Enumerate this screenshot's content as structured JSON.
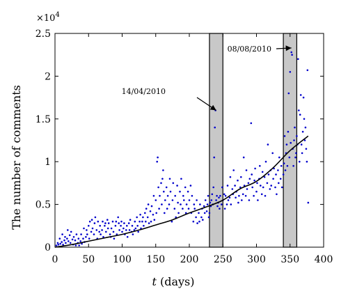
{
  "chart_data": {
    "type": "scatter",
    "xlabel_var": "t",
    "xlabel_unit": " (days)",
    "ylabel": "The number of comments",
    "y_multiplier": "×10",
    "y_multiplier_exp": "4",
    "xlim": [
      0,
      400
    ],
    "ylim": [
      0,
      2.5
    ],
    "y_scale_factor": 10000,
    "xticks": [
      0,
      50,
      100,
      150,
      200,
      250,
      300,
      350,
      400
    ],
    "yticks": [
      0,
      0.5,
      1,
      1.5,
      2,
      2.5
    ],
    "ytick_labels": [
      "0",
      "0.5",
      "1",
      "1.5",
      "2",
      "2.5"
    ],
    "grid": false,
    "colors": {
      "points": "#0000cc",
      "fit": "#000000",
      "band": "#c8c8c8"
    },
    "highlight_bands": [
      {
        "x": [
          230,
          250
        ]
      },
      {
        "x": [
          340,
          360
        ]
      }
    ],
    "annotations": [
      {
        "text": "14/04/2010",
        "target": [
          240,
          1.6
        ]
      },
      {
        "text": "08/08/2010",
        "target": [
          352,
          2.33
        ]
      }
    ],
    "fit": {
      "x": [
        0,
        25,
        50,
        75,
        100,
        125,
        150,
        175,
        200,
        225,
        250,
        275,
        300,
        325,
        350,
        377
      ],
      "y": [
        0,
        0.03,
        0.07,
        0.11,
        0.15,
        0.2,
        0.26,
        0.32,
        0.4,
        0.47,
        0.55,
        0.68,
        0.77,
        0.93,
        1.13,
        1.3
      ]
    },
    "series": [
      {
        "values": [
          [
            2,
            0.02
          ],
          [
            4,
            0.05
          ],
          [
            5,
            0.03
          ],
          [
            7,
            0.1
          ],
          [
            8,
            0.04
          ],
          [
            10,
            0.06
          ],
          [
            11,
            0.15
          ],
          [
            12,
            0.03
          ],
          [
            14,
            0.08
          ],
          [
            15,
            0.12
          ],
          [
            16,
            0.05
          ],
          [
            18,
            0.1
          ],
          [
            19,
            0.2
          ],
          [
            20,
            0.07
          ],
          [
            22,
            0.14
          ],
          [
            23,
            0.05
          ],
          [
            24,
            0.18
          ],
          [
            26,
            0.09
          ],
          [
            27,
            0.03
          ],
          [
            28,
            0.12
          ],
          [
            30,
            0.08
          ],
          [
            31,
            0.02
          ],
          [
            32,
            0.15
          ],
          [
            34,
            0.05
          ],
          [
            35,
            0.1
          ],
          [
            36,
            0.02
          ],
          [
            38,
            0.07
          ],
          [
            39,
            0.15
          ],
          [
            40,
            0.04
          ],
          [
            42,
            0.1
          ],
          [
            43,
            0.22
          ],
          [
            44,
            0.06
          ],
          [
            46,
            0.12
          ],
          [
            47,
            0.2
          ],
          [
            48,
            0.15
          ],
          [
            50,
            0.25
          ],
          [
            51,
            0.1
          ],
          [
            52,
            0.3
          ],
          [
            54,
            0.18
          ],
          [
            55,
            0.32
          ],
          [
            56,
            0.22
          ],
          [
            58,
            0.15
          ],
          [
            59,
            0.28
          ],
          [
            60,
            0.35
          ],
          [
            62,
            0.2
          ],
          [
            63,
            0.1
          ],
          [
            64,
            0.3
          ],
          [
            66,
            0.18
          ],
          [
            67,
            0.25
          ],
          [
            68,
            0.15
          ],
          [
            70,
            0.2
          ],
          [
            71,
            0.3
          ],
          [
            72,
            0.12
          ],
          [
            74,
            0.25
          ],
          [
            75,
            0.28
          ],
          [
            76,
            0.18
          ],
          [
            78,
            0.32
          ],
          [
            79,
            0.22
          ],
          [
            80,
            0.28
          ],
          [
            82,
            0.15
          ],
          [
            83,
            0.12
          ],
          [
            84,
            0.22
          ],
          [
            86,
            0.3
          ],
          [
            87,
            0.18
          ],
          [
            88,
            0.1
          ],
          [
            90,
            0.25
          ],
          [
            91,
            0.3
          ],
          [
            92,
            0.15
          ],
          [
            94,
            0.35
          ],
          [
            95,
            0.28
          ],
          [
            96,
            0.2
          ],
          [
            98,
            0.25
          ],
          [
            99,
            0.3
          ],
          [
            100,
            0.18
          ],
          [
            102,
            0.22
          ],
          [
            103,
            0.28
          ],
          [
            104,
            0.15
          ],
          [
            106,
            0.2
          ],
          [
            107,
            0.25
          ],
          [
            108,
            0.12
          ],
          [
            110,
            0.28
          ],
          [
            111,
            0.2
          ],
          [
            112,
            0.32
          ],
          [
            114,
            0.18
          ],
          [
            115,
            0.25
          ],
          [
            116,
            0.15
          ],
          [
            118,
            0.2
          ],
          [
            119,
            0.3
          ],
          [
            120,
            0.22
          ],
          [
            122,
            0.35
          ],
          [
            123,
            0.25
          ],
          [
            124,
            0.18
          ],
          [
            126,
            0.3
          ],
          [
            127,
            0.38
          ],
          [
            128,
            0.22
          ],
          [
            130,
            0.3
          ],
          [
            131,
            0.35
          ],
          [
            132,
            0.25
          ],
          [
            134,
            0.4
          ],
          [
            135,
            0.3
          ],
          [
            136,
            0.45
          ],
          [
            138,
            0.35
          ],
          [
            139,
            0.5
          ],
          [
            140,
            0.28
          ],
          [
            142,
            0.42
          ],
          [
            143,
            0.3
          ],
          [
            144,
            0.48
          ],
          [
            146,
            0.38
          ],
          [
            147,
            0.6
          ],
          [
            148,
            0.32
          ],
          [
            150,
            0.55
          ],
          [
            151,
            0.4
          ],
          [
            152,
            1.0
          ],
          [
            153,
            1.05
          ],
          [
            154,
            0.7
          ],
          [
            155,
            0.45
          ],
          [
            156,
            0.6
          ],
          [
            158,
            0.75
          ],
          [
            159,
            0.5
          ],
          [
            160,
            0.8
          ],
          [
            161,
            0.9
          ],
          [
            162,
            0.65
          ],
          [
            163,
            0.4
          ],
          [
            164,
            0.55
          ],
          [
            166,
            0.7
          ],
          [
            167,
            0.45
          ],
          [
            168,
            0.6
          ],
          [
            170,
            0.5
          ],
          [
            171,
            0.8
          ],
          [
            172,
            0.65
          ],
          [
            174,
            0.3
          ],
          [
            175,
            0.55
          ],
          [
            176,
            0.75
          ],
          [
            178,
            0.45
          ],
          [
            179,
            0.6
          ],
          [
            180,
            0.35
          ],
          [
            182,
            0.72
          ],
          [
            183,
            0.52
          ],
          [
            184,
            0.4
          ],
          [
            186,
            0.65
          ],
          [
            187,
            0.5
          ],
          [
            188,
            0.8
          ],
          [
            190,
            0.45
          ],
          [
            191,
            0.6
          ],
          [
            192,
            0.55
          ],
          [
            194,
            0.7
          ],
          [
            195,
            0.4
          ],
          [
            196,
            0.5
          ],
          [
            198,
            0.65
          ],
          [
            199,
            0.45
          ],
          [
            200,
            0.55
          ],
          [
            202,
            0.72
          ],
          [
            203,
            0.4
          ],
          [
            204,
            0.6
          ],
          [
            206,
            0.3
          ],
          [
            207,
            0.5
          ],
          [
            208,
            0.45
          ],
          [
            210,
            0.35
          ],
          [
            211,
            0.55
          ],
          [
            212,
            0.28
          ],
          [
            214,
            0.4
          ],
          [
            215,
            0.3
          ],
          [
            216,
            0.5
          ],
          [
            218,
            0.35
          ],
          [
            219,
            0.45
          ],
          [
            220,
            0.32
          ],
          [
            222,
            0.48
          ],
          [
            223,
            0.4
          ],
          [
            224,
            0.55
          ],
          [
            226,
            0.42
          ],
          [
            227,
            0.5
          ],
          [
            228,
            0.6
          ],
          [
            229,
            0.35
          ],
          [
            230,
            0.4
          ],
          [
            231,
            0.52
          ],
          [
            232,
            0.48
          ],
          [
            233,
            0.55
          ],
          [
            234,
            0.62
          ],
          [
            235,
            0.5
          ],
          [
            236,
            0.7
          ],
          [
            237,
            1.05
          ],
          [
            238,
            1.4
          ],
          [
            239,
            1.6
          ],
          [
            240,
            0.55
          ],
          [
            241,
            0.6
          ],
          [
            242,
            0.48
          ],
          [
            243,
            0.52
          ],
          [
            244,
            0.58
          ],
          [
            245,
            0.45
          ],
          [
            246,
            0.6
          ],
          [
            248,
            0.5
          ],
          [
            249,
            0.7
          ],
          [
            250,
            0.55
          ],
          [
            252,
            0.62
          ],
          [
            253,
            0.45
          ],
          [
            254,
            0.6
          ],
          [
            256,
            0.5
          ],
          [
            257,
            0.72
          ],
          [
            258,
            0.55
          ],
          [
            260,
            0.58
          ],
          [
            261,
            0.82
          ],
          [
            262,
            0.5
          ],
          [
            264,
            0.68
          ],
          [
            265,
            0.62
          ],
          [
            266,
            0.9
          ],
          [
            268,
            0.72
          ],
          [
            269,
            0.58
          ],
          [
            270,
            0.65
          ],
          [
            272,
            0.78
          ],
          [
            273,
            0.52
          ],
          [
            274,
            0.6
          ],
          [
            276,
            0.7
          ],
          [
            277,
            0.82
          ],
          [
            278,
            0.55
          ],
          [
            280,
            0.62
          ],
          [
            281,
            1.05
          ],
          [
            282,
            0.72
          ],
          [
            284,
            0.6
          ],
          [
            285,
            0.9
          ],
          [
            286,
            0.68
          ],
          [
            288,
            0.75
          ],
          [
            289,
            0.55
          ],
          [
            290,
            0.8
          ],
          [
            292,
            1.45
          ],
          [
            293,
            0.85
          ],
          [
            294,
            0.7
          ],
          [
            296,
            0.6
          ],
          [
            297,
            0.78
          ],
          [
            298,
            0.92
          ],
          [
            300,
            0.65
          ],
          [
            301,
            0.75
          ],
          [
            302,
            0.55
          ],
          [
            304,
            0.8
          ],
          [
            305,
            0.95
          ],
          [
            306,
            0.72
          ],
          [
            308,
            0.62
          ],
          [
            309,
            0.88
          ],
          [
            310,
            0.7
          ],
          [
            312,
            0.82
          ],
          [
            313,
            0.6
          ],
          [
            314,
            1.0
          ],
          [
            316,
            0.75
          ],
          [
            317,
            1.2
          ],
          [
            318,
            0.85
          ],
          [
            320,
            0.68
          ],
          [
            321,
            0.9
          ],
          [
            322,
            0.72
          ],
          [
            324,
            1.1
          ],
          [
            325,
            0.8
          ],
          [
            326,
            0.92
          ],
          [
            328,
            0.7
          ],
          [
            329,
            0.85
          ],
          [
            330,
            0.62
          ],
          [
            332,
            0.9
          ],
          [
            333,
            0.75
          ],
          [
            334,
            1.05
          ],
          [
            336,
            0.8
          ],
          [
            337,
            0.95
          ],
          [
            338,
            0.7
          ],
          [
            340,
            0.85
          ],
          [
            341,
            0.98
          ],
          [
            342,
            1.3
          ],
          [
            343,
            0.9
          ],
          [
            344,
            1.1
          ],
          [
            345,
            1.2
          ],
          [
            346,
            0.95
          ],
          [
            347,
            1.35
          ],
          [
            348,
            1.8
          ],
          [
            349,
            1.05
          ],
          [
            350,
            2.05
          ],
          [
            351,
            1.22
          ],
          [
            352,
            2.28
          ],
          [
            353,
            2.25
          ],
          [
            354,
            1.15
          ],
          [
            355,
            0.95
          ],
          [
            356,
            1.25
          ],
          [
            357,
            1.4
          ],
          [
            358,
            1.05
          ],
          [
            359,
            1.1
          ],
          [
            360,
            1.3
          ],
          [
            361,
            1.2
          ],
          [
            362,
            2.2
          ],
          [
            363,
            1.6
          ],
          [
            364,
            1.0
          ],
          [
            365,
            1.55
          ],
          [
            366,
            1.78
          ],
          [
            367,
            1.2
          ],
          [
            368,
            1.1
          ],
          [
            369,
            1.35
          ],
          [
            370,
            1.75
          ],
          [
            371,
            1.5
          ],
          [
            372,
            1.25
          ],
          [
            373,
            1.4
          ],
          [
            374,
            1.15
          ],
          [
            375,
            1.0
          ],
          [
            376,
            2.07
          ],
          [
            377,
            0.52
          ]
        ]
      }
    ]
  }
}
